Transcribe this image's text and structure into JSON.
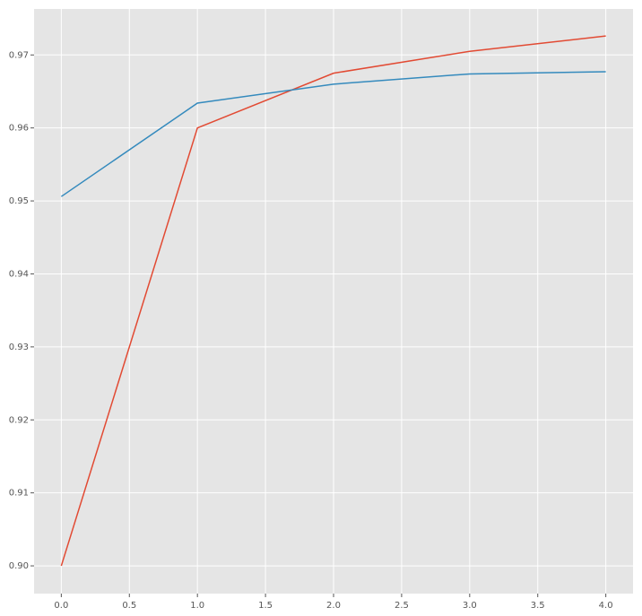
{
  "chart_data": {
    "type": "line",
    "x": [
      0,
      1,
      2,
      3,
      4
    ],
    "series": [
      {
        "color": "#E24A33",
        "values": [
          0.9,
          0.96,
          0.9675,
          0.9705,
          0.9726
        ]
      },
      {
        "color": "#348ABD",
        "values": [
          0.9506,
          0.9634,
          0.966,
          0.9674,
          0.9677
        ]
      }
    ],
    "xlim": [
      -0.2,
      4.2
    ],
    "ylim": [
      0.8962,
      0.9763
    ],
    "xticks": [
      {
        "value": 0,
        "label": "0.0"
      },
      {
        "value": 0.5,
        "label": "0.5"
      },
      {
        "value": 1,
        "label": "1.0"
      },
      {
        "value": 1.5,
        "label": "1.5"
      },
      {
        "value": 2,
        "label": "2.0"
      },
      {
        "value": 2.5,
        "label": "2.5"
      },
      {
        "value": 3,
        "label": "3.0"
      },
      {
        "value": 3.5,
        "label": "3.5"
      },
      {
        "value": 4,
        "label": "4.0"
      }
    ],
    "yticks": [
      {
        "value": 0.9,
        "label": "0.90"
      },
      {
        "value": 0.91,
        "label": "0.91"
      },
      {
        "value": 0.92,
        "label": "0.92"
      },
      {
        "value": 0.93,
        "label": "0.93"
      },
      {
        "value": 0.94,
        "label": "0.94"
      },
      {
        "value": 0.95,
        "label": "0.95"
      },
      {
        "value": 0.96,
        "label": "0.96"
      },
      {
        "value": 0.97,
        "label": "0.97"
      }
    ],
    "grid": true,
    "background": "#E5E5E5"
  }
}
